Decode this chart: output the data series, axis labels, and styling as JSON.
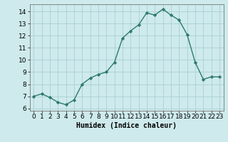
{
  "x": [
    0,
    1,
    2,
    3,
    4,
    5,
    6,
    7,
    8,
    9,
    10,
    11,
    12,
    13,
    14,
    15,
    16,
    17,
    18,
    19,
    20,
    21,
    22,
    23
  ],
  "y": [
    7.0,
    7.2,
    6.9,
    6.5,
    6.3,
    6.7,
    8.0,
    8.5,
    8.8,
    9.0,
    9.8,
    11.8,
    12.4,
    12.9,
    13.9,
    13.7,
    14.2,
    13.7,
    13.3,
    12.1,
    9.8,
    8.4,
    8.6,
    8.6
  ],
  "line_color": "#2d7a6a",
  "marker": "D",
  "markersize": 2.2,
  "linewidth": 1.0,
  "bg_color": "#ceeaec",
  "grid_color": "#aacfd4",
  "xlabel": "Humidex (Indice chaleur)",
  "xlabel_fontsize": 7,
  "tick_fontsize": 6.5,
  "ylim": [
    5.8,
    14.6
  ],
  "xlim": [
    -0.5,
    23.5
  ],
  "yticks": [
    6,
    7,
    8,
    9,
    10,
    11,
    12,
    13,
    14
  ],
  "xticks": [
    0,
    1,
    2,
    3,
    4,
    5,
    6,
    7,
    8,
    9,
    10,
    11,
    12,
    13,
    14,
    15,
    16,
    17,
    18,
    19,
    20,
    21,
    22,
    23
  ]
}
